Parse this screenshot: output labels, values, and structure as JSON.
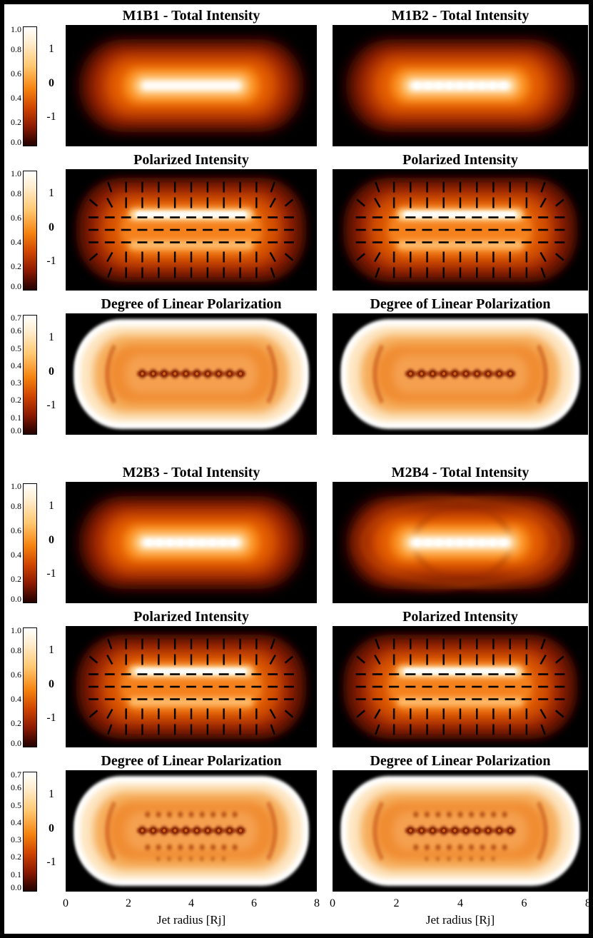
{
  "figure": {
    "xlabel": "Jet radius [Rj]",
    "x_ticks": [
      "0",
      "2",
      "4",
      "6",
      "8"
    ],
    "y_ticks": [
      "1",
      "0",
      "-1"
    ],
    "rows": [
      {
        "title_left": "M1B1 - Total Intensity",
        "title_right": "M1B2 - Total Intensity",
        "panel_type": "total",
        "variant_left": "smooth",
        "variant_right": "knots",
        "cbar": [
          "1.0",
          "0.8",
          "0.6",
          "0.4",
          "0.2",
          "0.0"
        ]
      },
      {
        "title_left": "Polarized Intensity",
        "title_right": "Polarized Intensity",
        "panel_type": "polarized",
        "variant_left": "pol",
        "variant_right": "pol",
        "cbar": [
          "1.0",
          "0.8",
          "0.6",
          "0.4",
          "0.2",
          "0.0"
        ]
      },
      {
        "title_left": "Degree of Linear Polarization",
        "title_right": "Degree of Linear Polarization",
        "panel_type": "dolp",
        "variant_left": "single",
        "variant_right": "single",
        "cbar": [
          "0.7",
          "0.6",
          "0.5",
          "0.4",
          "0.3",
          "0.2",
          "0.1",
          "0.0"
        ]
      },
      {
        "title_left": "M2B3 - Total Intensity",
        "title_right": "M2B4 - Total Intensity",
        "panel_type": "total",
        "variant_left": "knots",
        "variant_right": "ripples",
        "cbar": [
          "1.0",
          "0.8",
          "0.6",
          "0.4",
          "0.2",
          "0.0"
        ]
      },
      {
        "title_left": "Polarized Intensity",
        "title_right": "Polarized Intensity",
        "panel_type": "polarized",
        "variant_left": "pol",
        "variant_right": "pol",
        "cbar": [
          "1.0",
          "0.8",
          "0.6",
          "0.4",
          "0.2",
          "0.0"
        ]
      },
      {
        "title_left": "Degree of Linear Polarization",
        "title_right": "Degree of Linear Polarization",
        "panel_type": "dolp",
        "variant_left": "multi",
        "variant_right": "multi",
        "cbar": [
          "0.7",
          "0.6",
          "0.5",
          "0.4",
          "0.3",
          "0.2",
          "0.1",
          "0.0"
        ]
      }
    ]
  },
  "colors": {
    "panel_background": "#000000",
    "frame": "#000000",
    "colormap_low": "#240300",
    "colormap_mid": "#f58310",
    "colormap_high": "#ffffff",
    "polarization_vectors": "#000000"
  },
  "chart_data": [
    {
      "type": "heatmap",
      "panel": "M1B1",
      "quantity": "Total Intensity",
      "position": "row 1 left",
      "x_range_Rj": [
        0,
        8
      ],
      "x_ticks": [
        0,
        2,
        4,
        6,
        8
      ],
      "y_range_Rj": [
        -1.5,
        1.5
      ],
      "y_ticks": [
        1,
        0,
        -1
      ],
      "colorbar_range": [
        0.0,
        1.0
      ],
      "colorbar_ticks": [
        1.0,
        0.8,
        0.6,
        0.4,
        0.2,
        0.0
      ],
      "colormap": "heat (black-darkred-orange-white)",
      "features": "smooth capsule-shaped jet on black background; bright white core along jet axis y=0 from x=2 to 6; intensity fades smoothly through orange to dark red at the boundary"
    },
    {
      "type": "heatmap",
      "panel": "M1B2",
      "quantity": "Total Intensity",
      "position": "row 1 right",
      "x_range_Rj": [
        0,
        8
      ],
      "x_ticks": [
        0,
        2,
        4,
        6,
        8
      ],
      "y_range_Rj": [
        -1.5,
        1.5
      ],
      "y_ticks": [
        1,
        0,
        -1
      ],
      "colorbar_range": [
        0.0,
        1.0
      ],
      "colorbar_ticks": [
        1.0,
        0.8,
        0.6,
        0.4,
        0.2,
        0.0
      ],
      "colormap": "heat (black-darkred-orange-white)",
      "features": "capsule-shaped jet; bright axial core shows periodic bright knots (beaded structure) along y=0"
    },
    {
      "type": "heatmap",
      "panel": "M1B1",
      "quantity": "Polarized Intensity",
      "position": "row 2 left",
      "x_range_Rj": [
        0,
        8
      ],
      "y_range_Rj": [
        -1.5,
        1.5
      ],
      "colorbar_range": [
        0.0,
        1.0
      ],
      "colorbar_ticks": [
        1.0,
        0.8,
        0.6,
        0.4,
        0.2,
        0.0
      ],
      "colormap": "heat",
      "features": "capsule of polarized emission, brightest band just above jet axis; overlaid black bars show E-vector orientation: vertical above/below axis, horizontal along axis, fanning radially at jet ends"
    },
    {
      "type": "heatmap",
      "panel": "M1B2",
      "quantity": "Polarized Intensity",
      "position": "row 2 right",
      "x_range_Rj": [
        0,
        8
      ],
      "y_range_Rj": [
        -1.5,
        1.5
      ],
      "colorbar_range": [
        0.0,
        1.0
      ],
      "colorbar_ticks": [
        1.0,
        0.8,
        0.6,
        0.4,
        0.2,
        0.0
      ],
      "colormap": "heat",
      "features": "same as left with slightly knottier bright band; black polarization vector ticks overlaid"
    },
    {
      "type": "heatmap",
      "panel": "M1B1",
      "quantity": "Degree of Linear Polarization",
      "position": "row 3 left",
      "x_range_Rj": [
        0,
        8
      ],
      "y_range_Rj": [
        -1.5,
        1.5
      ],
      "colorbar_range": [
        0.0,
        0.7
      ],
      "colorbar_ticks": [
        0.7,
        0.6,
        0.5,
        0.4,
        0.3,
        0.2,
        0.1,
        0.0
      ],
      "colormap": "heat",
      "features": "polarization degree highest (white, ~0.7) in a rim at the jet edges; moderate orange (~0.3) interior; narrow dark depolarized band of knots along the jet axis x=2-6"
    },
    {
      "type": "heatmap",
      "panel": "M1B2",
      "quantity": "Degree of Linear Polarization",
      "position": "row 3 right",
      "x_range_Rj": [
        0,
        8
      ],
      "y_range_Rj": [
        -1.5,
        1.5
      ],
      "colorbar_range": [
        0.0,
        0.7
      ],
      "colorbar_ticks": [
        0.7,
        0.6,
        0.5,
        0.4,
        0.3,
        0.2,
        0.1,
        0.0
      ],
      "colormap": "heat",
      "features": "white high-polarization rim, orange interior, dark knotted depolarization chain along the axis, slightly longer than M1B1"
    },
    {
      "type": "heatmap",
      "panel": "M2B3",
      "quantity": "Total Intensity",
      "position": "row 4 left",
      "x_range_Rj": [
        0,
        8
      ],
      "x_ticks": [
        0,
        2,
        4,
        6,
        8
      ],
      "y_range_Rj": [
        -1.5,
        1.5
      ],
      "y_ticks": [
        1,
        0,
        -1
      ],
      "colorbar_range": [
        0.0,
        1.0
      ],
      "colorbar_ticks": [
        1.0,
        0.8,
        0.6,
        0.4,
        0.2,
        0.0
      ],
      "colormap": "heat",
      "features": "capsule-shaped jet with bright knotty white core along the axis"
    },
    {
      "type": "heatmap",
      "panel": "M2B4",
      "quantity": "Total Intensity",
      "position": "row 4 right",
      "x_range_Rj": [
        0,
        8
      ],
      "x_ticks": [
        0,
        2,
        4,
        6,
        8
      ],
      "y_range_Rj": [
        -1.5,
        1.5
      ],
      "y_ticks": [
        1,
        0,
        -1
      ],
      "colorbar_range": [
        0.0,
        1.0
      ],
      "colorbar_ticks": [
        1.0,
        0.8,
        0.6,
        0.4,
        0.2,
        0.0
      ],
      "colormap": "heat",
      "features": "bright knotty core plus multiple nested arc/ripple shock structures in the orange envelope"
    },
    {
      "type": "heatmap",
      "panel": "M2B3",
      "quantity": "Polarized Intensity",
      "position": "row 5 left",
      "x_range_Rj": [
        0,
        8
      ],
      "y_range_Rj": [
        -1.5,
        1.5
      ],
      "colorbar_range": [
        0.0,
        1.0
      ],
      "colorbar_ticks": [
        1.0,
        0.8,
        0.6,
        0.4,
        0.2,
        0.0
      ],
      "colormap": "heat",
      "features": "polarized capsule with bright knotty band above axis; black E-vector ticks: vertical off-axis, horizontal near axis, radial fan at ends"
    },
    {
      "type": "heatmap",
      "panel": "M2B4",
      "quantity": "Polarized Intensity",
      "position": "row 5 right",
      "x_range_Rj": [
        0,
        8
      ],
      "y_range_Rj": [
        -1.5,
        1.5
      ],
      "colorbar_range": [
        0.0,
        1.0
      ],
      "colorbar_ticks": [
        1.0,
        0.8,
        0.6,
        0.4,
        0.2,
        0.0
      ],
      "colormap": "heat",
      "features": "polarized capsule with pronounced knots and overlaid black polarization vector ticks"
    },
    {
      "type": "heatmap",
      "panel": "M2B3",
      "quantity": "Degree of Linear Polarization",
      "position": "row 6 left",
      "x_range_Rj": [
        0,
        8
      ],
      "x_ticks": [
        0,
        2,
        4,
        6,
        8
      ],
      "y_range_Rj": [
        -1.5,
        1.5
      ],
      "colorbar_range": [
        0.0,
        0.7
      ],
      "colorbar_ticks": [
        0.7,
        0.6,
        0.5,
        0.4,
        0.3,
        0.2,
        0.1,
        0.0
      ],
      "colormap": "heat",
      "xlabel": "Jet radius [Rj]",
      "features": "very light interior with white rim; several dark depolarized knot rows: strong chain on the axis plus fainter rows above and below"
    },
    {
      "type": "heatmap",
      "panel": "M2B4",
      "quantity": "Degree of Linear Polarization",
      "position": "row 6 right",
      "x_range_Rj": [
        0,
        8
      ],
      "x_ticks": [
        0,
        2,
        4,
        6,
        8
      ],
      "y_range_Rj": [
        -1.5,
        1.5
      ],
      "colorbar_range": [
        0.0,
        0.7
      ],
      "colorbar_ticks": [
        0.7,
        0.6,
        0.5,
        0.4,
        0.3,
        0.2,
        0.1,
        0.0
      ],
      "colormap": "heat",
      "xlabel": "Jet radius [Rj]",
      "features": "light mottled interior with white rim; multiple dark depolarized knot chains and streaky arc patterns across the jet interior"
    }
  ]
}
